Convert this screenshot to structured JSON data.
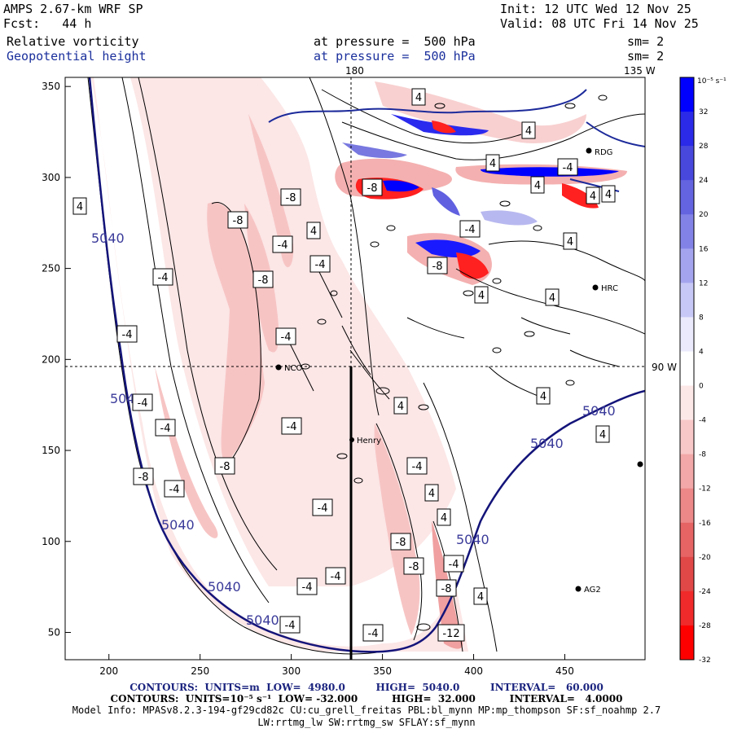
{
  "header": {
    "title": "AMPS 2.67-km WRF SP",
    "forecast": "Fcst:   44 h",
    "init": "Init: 12 UTC Wed 12 Nov 25",
    "valid": "Valid: 08 UTC Fri 14 Nov 25",
    "field1": "Relative vorticity",
    "field1_pressure": "at pressure =  500 hPa",
    "field1_smooth": "sm= 2",
    "field2": "Geopotential height",
    "field2_pressure": "at pressure =  500 hPa",
    "field2_smooth": "sm= 2"
  },
  "map": {
    "top_label_180": "180",
    "top_label_135w": "135 W",
    "right_label_90w": "90 W",
    "stations": [
      {
        "name": "RDG"
      },
      {
        "name": "HRC"
      },
      {
        "name": "NCO"
      },
      {
        "name": "Henry"
      },
      {
        "name": "AG2"
      }
    ]
  },
  "colorbar": {
    "unit_label": "10⁻⁵ s⁻¹",
    "ticks": [
      "32",
      "28",
      "24",
      "20",
      "16",
      "12",
      "8",
      "4",
      "0",
      "-4",
      "-8",
      "-12",
      "-16",
      "-20",
      "-24",
      "-28",
      "-32"
    ],
    "colors": [
      "#0000ff",
      "#2a2ae8",
      "#4848dd",
      "#6464e0",
      "#8282e6",
      "#a4a4ee",
      "#c8c8f6",
      "#eaeafc",
      "#ffffff",
      "#fde8e8",
      "#f8c8c8",
      "#f2a8a8",
      "#ec8888",
      "#e66464",
      "#e04848",
      "#f02a2a",
      "#ff0000"
    ]
  },
  "footer": {
    "line1": "CONTOURS:  UNITS=m  LOW=  4980.0         HIGH=  5040.0         INTERVAL=   60.000",
    "line2": "CONTOURS:  UNITS=10⁻⁵ s⁻¹  LOW= -32.000          HIGH=  32.000          INTERVAL=   4.0000",
    "line3": "Model Info: MPASv8.2.3-194-gf29cd82c CU:cu_grell_freitas PBL:bl_mynn MP:mp_thompson SF:sf_noahmp 2.7",
    "line4": "LW:rrtmg_lw SW:rrtmg_sw SFLAY:sf_mynn"
  },
  "chart_data": {
    "type": "contour-map",
    "title": "Relative vorticity and Geopotential height at 500 hPa",
    "x_axis": {
      "range": [
        176,
        494
      ],
      "ticks": [
        200,
        250,
        300,
        350,
        400,
        450
      ]
    },
    "y_axis": {
      "range": [
        35,
        355
      ],
      "ticks": [
        50,
        100,
        150,
        200,
        250,
        300,
        350
      ]
    },
    "geopotential_contour_labels": [
      "5040",
      "5040",
      "5040",
      "5040",
      "5040",
      "5040"
    ],
    "vorticity_contour_labels": [
      "4",
      "-8",
      "-8",
      "-4",
      "-4",
      "4",
      "-4",
      "-8",
      "-4",
      "-4",
      "-8",
      "-4",
      "-4",
      "-4",
      "-8",
      "-4",
      "-4",
      "-4",
      "-4",
      "-4",
      "4",
      "-4",
      "4",
      "4",
      "4",
      "-8",
      "-8",
      "-8",
      "-4",
      "-12",
      "4",
      "4",
      "4",
      "4",
      "4",
      "4",
      "-4",
      "-8",
      "4",
      "4",
      "-4",
      "-8",
      "4",
      "4",
      "4",
      "-4"
    ]
  }
}
